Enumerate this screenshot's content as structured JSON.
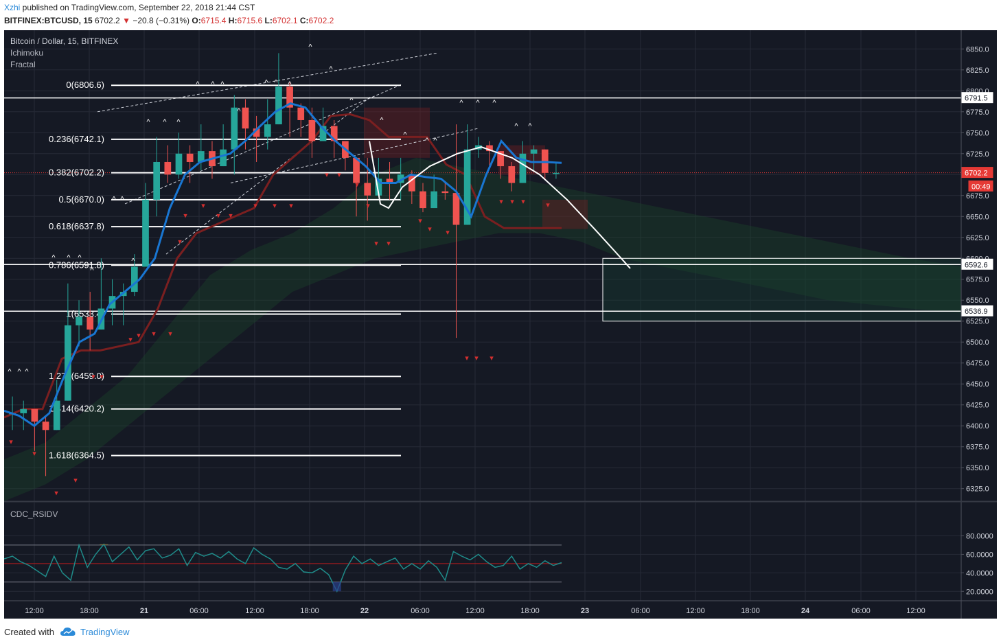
{
  "header": {
    "author": "Xzhi",
    "published_text": " published on TradingView.com, September 22, 2018 21:44 CST",
    "symbol": "BITFINEX:BTCUSD, 15",
    "last": "6702.2",
    "change_arrow": "▼",
    "change": "−20.8 (−0.31%)",
    "open_label": "O:",
    "open": "6715.4",
    "high_label": "H:",
    "high": "6715.6",
    "low_label": "L:",
    "low": "6702.1",
    "close_label": "C:",
    "close": "6702.2"
  },
  "legend": {
    "title": "Bitcoin / Dollar, 15, BITFINEX",
    "indicator1": "Ichimoku",
    "indicator2": "Fractal"
  },
  "footer": {
    "created_with": "Created with",
    "brand": "TradingView",
    "logo_icon": "tradingview-cloud-icon"
  },
  "colors": {
    "background": "#151924",
    "grid": "#262b37",
    "up": "#26a69a",
    "down": "#ef5350",
    "tenkan": "#1976d2",
    "kijun": "#7a1f20",
    "fib": "#ffffff",
    "price_label_bg": "#e53935"
  },
  "chart_data": {
    "type": "candlestick",
    "price_axis": {
      "range": [
        6310,
        6865
      ],
      "ticks": [
        "6850.0",
        "6825.0",
        "6800.0",
        "6775.0",
        "6750.0",
        "6725.0",
        "6700.0",
        "6675.0",
        "6650.0",
        "6625.0",
        "6600.0",
        "6575.0",
        "6550.0",
        "6525.0",
        "6500.0",
        "6475.0",
        "6450.0",
        "6425.0",
        "6400.0",
        "6375.0",
        "6350.0",
        "6325.0"
      ],
      "tick_values": [
        6850,
        6825,
        6800,
        6775,
        6750,
        6725,
        6700,
        6675,
        6650,
        6625,
        6600,
        6575,
        6550,
        6525,
        6500,
        6475,
        6450,
        6425,
        6400,
        6375,
        6350,
        6325
      ]
    },
    "time_axis": {
      "labels": [
        "12:00",
        "18:00",
        "21",
        "06:00",
        "12:00",
        "18:00",
        "22",
        "06:00",
        "12:00",
        "18:00",
        "23",
        "06:00",
        "12:00",
        "18:00",
        "24",
        "06:00",
        "12:00"
      ],
      "bold": [
        false,
        false,
        true,
        false,
        false,
        false,
        true,
        false,
        false,
        false,
        true,
        false,
        false,
        false,
        true,
        false,
        false
      ]
    },
    "price_labels": [
      {
        "text": "6791.5",
        "value": 6791.5,
        "style": "outline"
      },
      {
        "text": "6702.2",
        "value": 6702.2,
        "style": "current"
      },
      {
        "text": "00:49",
        "value": 6686,
        "style": "countdown"
      },
      {
        "text": "6592.6",
        "value": 6592.6,
        "style": "outline"
      },
      {
        "text": "6536.9",
        "value": 6536.9,
        "style": "outline"
      }
    ],
    "fib_levels": [
      {
        "label": "0(6806.6)",
        "value": 6806.6
      },
      {
        "label": "0.236(6742.1)",
        "value": 6742.1
      },
      {
        "label": "0.382(6702.2)",
        "value": 6702.2
      },
      {
        "label": "0.5(6670.0)",
        "value": 6670.0
      },
      {
        "label": "0.618(6637.8)",
        "value": 6637.8
      },
      {
        "label": "0.786(6591.8)",
        "value": 6591.8
      },
      {
        "label": "1(6533.4)",
        "value": 6533.4
      },
      {
        "label": "1.272(6459.0)",
        "value": 6459.0
      },
      {
        "label": "1.414(6420.2)",
        "value": 6420.2
      },
      {
        "label": "1.618(6364.5)",
        "value": 6364.5
      }
    ],
    "horizontal_lines": [
      6791.5,
      6592.6,
      6536.9
    ],
    "target_box": {
      "price_top": 6600,
      "price_bottom": 6525
    },
    "ohlc_path": [
      [
        6415,
        6435,
        6395
      ],
      [
        6420,
        6430,
        6395
      ],
      [
        6405,
        6418,
        6370
      ],
      [
        6395,
        6410,
        6340
      ],
      [
        6430,
        6455,
        6400
      ],
      [
        6520,
        6570,
        6500
      ],
      [
        6530,
        6550,
        6495
      ],
      [
        6515,
        6560,
        6490
      ],
      [
        6540,
        6600,
        6520
      ],
      [
        6555,
        6575,
        6520
      ],
      [
        6560,
        6570,
        6520
      ],
      [
        6590,
        6605,
        6555
      ],
      [
        6670,
        6690,
        6620
      ],
      [
        6715,
        6745,
        6650
      ],
      [
        6700,
        6735,
        6690
      ],
      [
        6725,
        6750,
        6695
      ],
      [
        6715,
        6735,
        6690
      ],
      [
        6728,
        6760,
        6705
      ],
      [
        6710,
        6740,
        6695
      ],
      [
        6730,
        6760,
        6715
      ],
      [
        6780,
        6795,
        6700
      ],
      [
        6755,
        6790,
        6730
      ],
      [
        6745,
        6770,
        6715
      ],
      [
        6760,
        6790,
        6730
      ],
      [
        6805,
        6845,
        6770
      ],
      [
        6780,
        6810,
        6745
      ],
      [
        6765,
        6785,
        6745
      ],
      [
        6740,
        6780,
        6720
      ],
      [
        6758,
        6780,
        6740
      ],
      [
        6740,
        6765,
        6720
      ],
      [
        6720,
        6740,
        6705
      ],
      [
        6690,
        6720,
        6650
      ],
      [
        6675,
        6720,
        6645
      ],
      [
        6695,
        6720,
        6675
      ],
      [
        6690,
        6715,
        6670
      ],
      [
        6700,
        6720,
        6670
      ],
      [
        6680,
        6705,
        6665
      ],
      [
        6660,
        6690,
        6655
      ],
      [
        6680,
        6700,
        6665
      ],
      [
        6678,
        6690,
        6670
      ],
      [
        6640,
        6760,
        6505
      ],
      [
        6730,
        6760,
        6710
      ],
      [
        6735,
        6745,
        6720
      ],
      [
        6728,
        6740,
        6710
      ],
      [
        6710,
        6725,
        6695
      ],
      [
        6690,
        6715,
        6680
      ],
      [
        6725,
        6740,
        6700
      ],
      [
        6730,
        6735,
        6705
      ],
      [
        6702,
        6720,
        6695
      ],
      [
        6702,
        6715,
        6695
      ]
    ],
    "ichimoku": {
      "tenkan": [
        6418,
        6412,
        6400,
        6415,
        6460,
        6500,
        6510,
        6545,
        6560,
        6575,
        6600,
        6660,
        6700,
        6715,
        6720,
        6725,
        6740,
        6758,
        6775,
        6785,
        6780,
        6758,
        6740,
        6725,
        6710,
        6690,
        6690,
        6700,
        6697,
        6695,
        6680,
        6650,
        6700,
        6740,
        6720,
        6715,
        6715,
        6714
      ],
      "kijun": [
        6410,
        6420,
        6420,
        6480,
        6490,
        6490,
        6495,
        6500,
        6540,
        6600,
        6630,
        6640,
        6650,
        6660,
        6700,
        6720,
        6740,
        6770,
        6772,
        6765,
        6745,
        6745,
        6745,
        6712,
        6700,
        6650,
        6636,
        6636,
        6636,
        6636
      ]
    },
    "fractals": {
      "up_count": 30,
      "down_count": 28
    },
    "rsi": {
      "title": "CDC_RSIDV",
      "ticks": [
        "80.0000",
        "60.0000",
        "40.0000",
        "20.0000"
      ],
      "tick_values": [
        80,
        60,
        40,
        20
      ],
      "range": [
        15,
        90
      ],
      "levels": [
        70,
        50,
        30
      ],
      "values": [
        55,
        58,
        52,
        48,
        42,
        36,
        58,
        40,
        32,
        70,
        46,
        60,
        71,
        52,
        60,
        68,
        54,
        64,
        66,
        56,
        59,
        66,
        48,
        62,
        58,
        61,
        56,
        63,
        55,
        50,
        67,
        60,
        55,
        46,
        44,
        50,
        41,
        40,
        45,
        38,
        20,
        43,
        58,
        50,
        55,
        48,
        52,
        56,
        44,
        50,
        44,
        53,
        46,
        32,
        63,
        58,
        54,
        60,
        52,
        46,
        48,
        58,
        44,
        50,
        46,
        53,
        48,
        51
      ]
    }
  }
}
